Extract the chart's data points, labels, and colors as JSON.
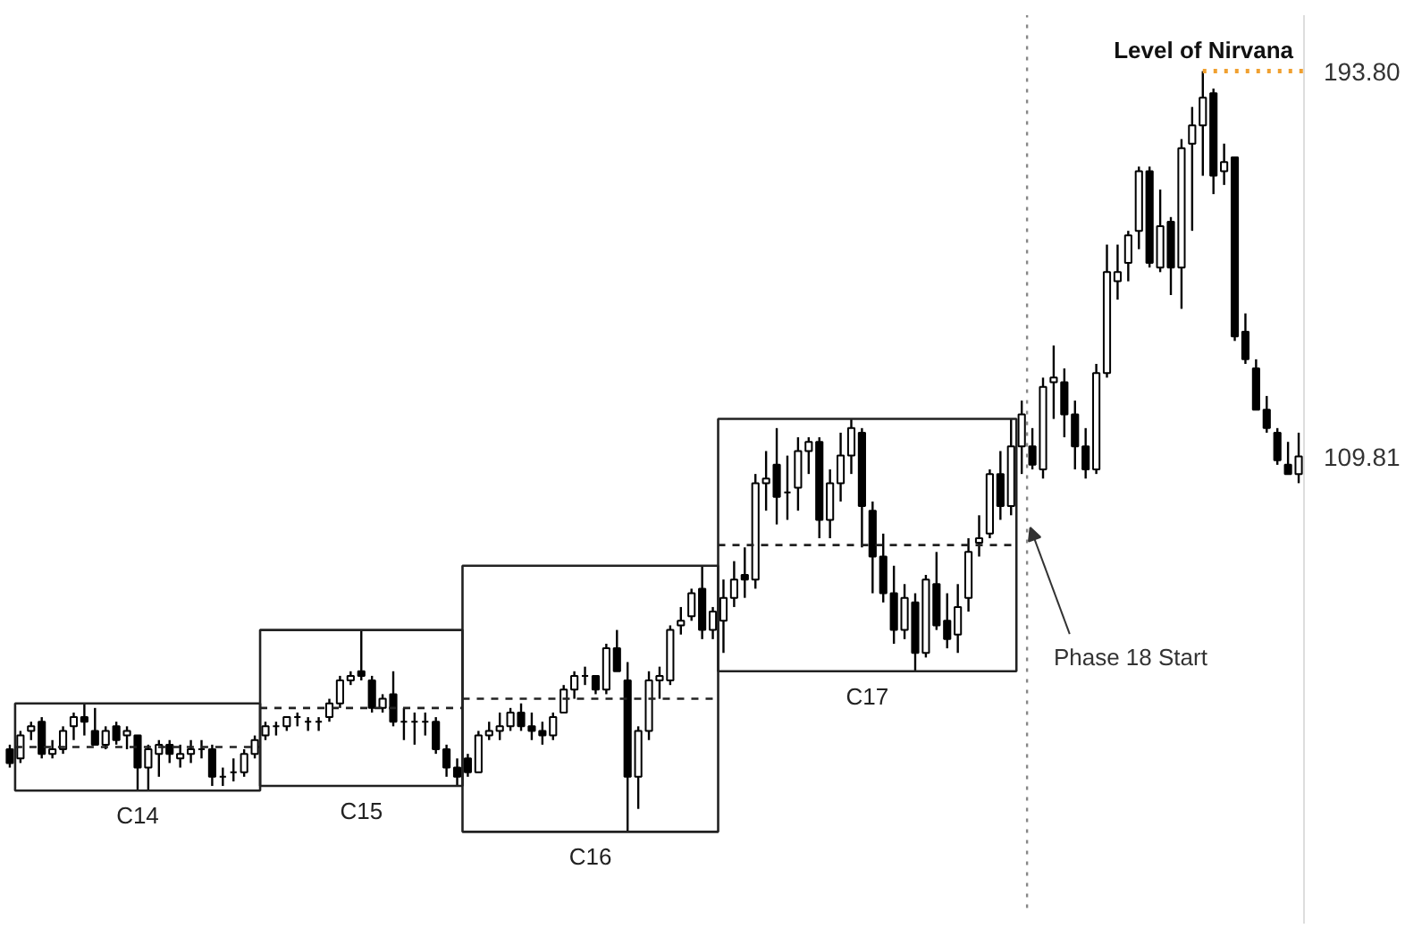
{
  "chart_data": {
    "type": "candlestick",
    "categories": [
      null,
      null,
      null,
      null,
      null,
      null,
      null,
      null,
      null,
      null,
      null,
      null,
      null,
      null,
      null,
      null,
      null,
      null,
      null,
      null,
      null,
      null,
      null,
      null,
      null,
      null,
      null,
      null,
      null,
      null,
      null,
      null,
      null,
      null,
      null,
      null,
      null,
      null,
      null,
      null,
      null,
      null,
      null,
      null,
      null,
      null,
      null,
      null,
      null,
      null,
      null,
      null,
      null,
      null,
      null,
      null,
      null,
      null,
      null,
      null,
      null,
      null,
      null,
      null,
      null,
      null,
      null,
      null,
      null,
      null,
      null,
      null,
      null,
      null,
      null,
      null,
      null,
      null,
      null,
      null,
      null,
      null,
      null,
      null,
      null,
      null,
      null,
      null,
      null,
      null,
      null,
      null,
      null,
      null,
      null,
      null,
      null,
      null,
      null,
      null,
      null,
      null,
      null,
      null,
      null,
      null,
      null,
      null,
      null,
      null,
      null,
      null,
      null,
      null,
      null,
      null,
      null,
      null,
      null,
      null,
      null,
      null
    ],
    "ohlc": [
      [
        46,
        47,
        42,
        43
      ],
      [
        44,
        50,
        43,
        49
      ],
      [
        50,
        52,
        48,
        51
      ],
      [
        52,
        53,
        44,
        45
      ],
      [
        45,
        48,
        44,
        46
      ],
      [
        46,
        51,
        45,
        50
      ],
      [
        51,
        54,
        48,
        53
      ],
      [
        53,
        56,
        49,
        52
      ],
      [
        50,
        55,
        47,
        47
      ],
      [
        47,
        51,
        46,
        50
      ],
      [
        51,
        52,
        47,
        48
      ],
      [
        49,
        51,
        46,
        50
      ],
      [
        49,
        49,
        37,
        42
      ],
      [
        42,
        47,
        37,
        46
      ],
      [
        45,
        48,
        40,
        47
      ],
      [
        47,
        48,
        43,
        45
      ],
      [
        44,
        47,
        42,
        45
      ],
      [
        45,
        48,
        43,
        46
      ],
      [
        46,
        48,
        44,
        46
      ],
      [
        46,
        47,
        38,
        40
      ],
      [
        40,
        42,
        38,
        40
      ],
      [
        41,
        44,
        39,
        41
      ],
      [
        41,
        46,
        40,
        45
      ],
      [
        45,
        49,
        44,
        48
      ],
      [
        49,
        52,
        48,
        51
      ],
      [
        51,
        52,
        49,
        51
      ],
      [
        51,
        53,
        50,
        53
      ],
      [
        53,
        54,
        51,
        53
      ],
      [
        52,
        53,
        50,
        52
      ],
      [
        52,
        53,
        50,
        52
      ],
      [
        53,
        57,
        52,
        56
      ],
      [
        56,
        62,
        55,
        61
      ],
      [
        61,
        63,
        60,
        62
      ],
      [
        63,
        72,
        61,
        62
      ],
      [
        61,
        62,
        54,
        55
      ],
      [
        55,
        58,
        54,
        57
      ],
      [
        58,
        63,
        51,
        52
      ],
      [
        52,
        55,
        48,
        52
      ],
      [
        52,
        54,
        47,
        52
      ],
      [
        52,
        54,
        49,
        52
      ],
      [
        52,
        53,
        45,
        46
      ],
      [
        46,
        47,
        40,
        42
      ],
      [
        42,
        44,
        38,
        40
      ],
      [
        44,
        45,
        40,
        41
      ],
      [
        41,
        50,
        41,
        49
      ],
      [
        49,
        52,
        48,
        50
      ],
      [
        50,
        54,
        48,
        51
      ],
      [
        51,
        55,
        50,
        54
      ],
      [
        54,
        56,
        50,
        51
      ],
      [
        51,
        54,
        48,
        50
      ],
      [
        50,
        52,
        47,
        49
      ],
      [
        49,
        54,
        48,
        53
      ],
      [
        54,
        60,
        54,
        59
      ],
      [
        59,
        63,
        57,
        62
      ],
      [
        62,
        64,
        60,
        62
      ],
      [
        62,
        62,
        58,
        59
      ],
      [
        59,
        69,
        58,
        68
      ],
      [
        68,
        72,
        63,
        63
      ],
      [
        61,
        65,
        28,
        40
      ],
      [
        40,
        51,
        33,
        50
      ],
      [
        50,
        63,
        48,
        61
      ],
      [
        61,
        64,
        57,
        62
      ],
      [
        61,
        73,
        60,
        72
      ],
      [
        73,
        77,
        71,
        74
      ],
      [
        75,
        81,
        74,
        80
      ],
      [
        81,
        86,
        70,
        72
      ],
      [
        72,
        77,
        70,
        76
      ],
      [
        74,
        83,
        67,
        79
      ],
      [
        79,
        87,
        77,
        83
      ],
      [
        84,
        90,
        79,
        83
      ],
      [
        83,
        106,
        81,
        104
      ],
      [
        104,
        111,
        98,
        105
      ],
      [
        108,
        116,
        95,
        101
      ],
      [
        102,
        110,
        96,
        102
      ],
      [
        103,
        114,
        98,
        111
      ],
      [
        111,
        114,
        106,
        113
      ],
      [
        113,
        114,
        92,
        96
      ],
      [
        96,
        107,
        92,
        104
      ],
      [
        104,
        115,
        100,
        110
      ],
      [
        110,
        118,
        106,
        116
      ],
      [
        115,
        116,
        90,
        99
      ],
      [
        98,
        100,
        80,
        88
      ],
      [
        88,
        93,
        78,
        80
      ],
      [
        80,
        86,
        69,
        72
      ],
      [
        72,
        82,
        70,
        79
      ],
      [
        78,
        80,
        63,
        67
      ],
      [
        67,
        84,
        66,
        83
      ],
      [
        82,
        89,
        72,
        73
      ],
      [
        74,
        80,
        68,
        70
      ],
      [
        71,
        82,
        67,
        77
      ],
      [
        79,
        92,
        76,
        89
      ],
      [
        91,
        97,
        88,
        92
      ],
      [
        93,
        107,
        92,
        106
      ],
      [
        106,
        111,
        96,
        99
      ],
      [
        99,
        118,
        97,
        112
      ],
      [
        112,
        122,
        106,
        119
      ],
      [
        112,
        116,
        107,
        108
      ],
      [
        107,
        127,
        105,
        125
      ],
      [
        126,
        134,
        118,
        127
      ],
      [
        126,
        129,
        114,
        119
      ],
      [
        119,
        122,
        107,
        112
      ],
      [
        112,
        116,
        105,
        107
      ],
      [
        107,
        130,
        106,
        128
      ],
      [
        128,
        156,
        127,
        150
      ],
      [
        148,
        156,
        144,
        150
      ],
      [
        152,
        159,
        148,
        158
      ],
      [
        159,
        173,
        155,
        172
      ],
      [
        172,
        173,
        151,
        152
      ],
      [
        151,
        168,
        150,
        160
      ],
      [
        161,
        162,
        145,
        151
      ],
      [
        151,
        179,
        142,
        177
      ],
      [
        178,
        186,
        159,
        182
      ],
      [
        182,
        193.8,
        171,
        188
      ],
      [
        189,
        190,
        167,
        171
      ],
      [
        172,
        178,
        169,
        174
      ],
      [
        175,
        175,
        135,
        136
      ],
      [
        137,
        141,
        130,
        131
      ],
      [
        129,
        131,
        120,
        120
      ],
      [
        120,
        123,
        115,
        116
      ],
      [
        115,
        116,
        108,
        109
      ],
      [
        108,
        113,
        106,
        106
      ],
      [
        106,
        115,
        104,
        109.81
      ]
    ],
    "yticks": [
      {
        "value": 193.8,
        "label": "193.80"
      },
      {
        "value": 109.81,
        "label": "109.81"
      }
    ],
    "ylim": [
      8,
      206
    ],
    "tick_labels": "y",
    "annotations": [
      "C14",
      "C15",
      "C16",
      "C17",
      "Phase 18 Start"
    ],
    "ref_lines": [
      {
        "axis": "y",
        "value": 193.8,
        "label": "Level of Nirvana",
        "color": "#f0a030",
        "line_style": "dotted"
      },
      {
        "axis": "y",
        "value": 46.5,
        "color": "#222222",
        "line_style": "dashed"
      },
      {
        "axis": "y",
        "value": 55,
        "color": "#222222",
        "line_style": "dashed"
      },
      {
        "axis": "y",
        "value": 57,
        "color": "#222222",
        "line_style": "dashed"
      },
      {
        "axis": "y",
        "value": 90.5,
        "color": "#222222",
        "line_style": "dashed"
      }
    ]
  }
}
